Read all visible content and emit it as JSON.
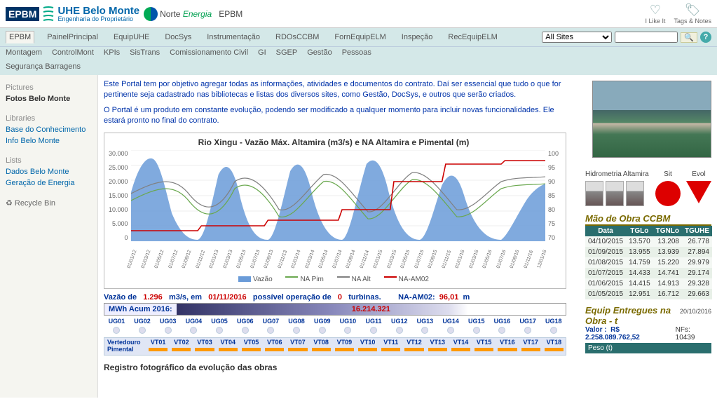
{
  "header": {
    "logo_abbr": "EPBM",
    "logo_line1": "UHE Belo Monte",
    "logo_line2": "Engenharia do Proprietário",
    "norte": "Norte",
    "energia": "Energia",
    "site_title": "EPBM",
    "like_label": "I Like It",
    "tags_label": "Tags & Notes"
  },
  "nav": {
    "row1": [
      "EPBM",
      "PainelPrincipal",
      "EquipUHE",
      "DocSys",
      "Instrumentação",
      "RDOsCCBM",
      "FornEquipELM",
      "Inspeção",
      "RecEquipELM"
    ],
    "row2": [
      "Montagem",
      "ControlMont",
      "KPIs",
      "SisTrans",
      "Comissionamento Civil",
      "GI",
      "SGEP",
      "Gestão",
      "Pessoas"
    ],
    "row3": [
      "Segurança Barragens"
    ],
    "search_site": "All Sites",
    "search_placeholder": ""
  },
  "sidebar": {
    "h1": "Pictures",
    "l1": "Fotos Belo Monte",
    "h2": "Libraries",
    "l2": "Base do Conhecimento",
    "l3": "Info Belo Monte",
    "h3": "Lists",
    "l4": "Dados Belo Monte",
    "l5": "Geração de Energia",
    "recycle": "Recycle Bin"
  },
  "intro": {
    "p1": "Este Portal tem por objetivo agregar todas as informações, atividades e documentos do contrato. Daí ser essencial que tudo o que for pertinente seja cadastrado nas bibliotecas e listas dos diversos sites, como Gestão, DocSys, e outros que serão criados.",
    "p2": "O Portal é um produto em constante evolução, podendo ser modificado a qualquer momento para incluir novas funcionalidades. Ele estará pronto no final do contrato."
  },
  "chart": {
    "title": "Rio Xingu - Vazão Máx. Altamira (m3/s) e NA Altamira e Pimental (m)",
    "y1ticks": [
      "30.000",
      "25.000",
      "20.000",
      "15.000",
      "10.000",
      "5.000",
      "0"
    ],
    "y2ticks": [
      "100",
      "95",
      "90",
      "85",
      "80",
      "75",
      "70"
    ],
    "xticks": [
      "01/01/12",
      "01/03/12",
      "01/05/12",
      "01/07/12",
      "01/09/12",
      "01/11/12",
      "01/01/13",
      "01/03/13",
      "01/05/13",
      "01/07/13",
      "01/09/13",
      "01/11/13",
      "01/01/14",
      "01/03/14",
      "01/05/14",
      "01/07/14",
      "01/09/14",
      "01/11/14",
      "01/01/15",
      "01/03/15",
      "01/05/15",
      "01/07/15",
      "01/09/15",
      "01/11/15",
      "01/01/16",
      "01/03/16",
      "01/05/16",
      "01/07/16",
      "01/09/16",
      "01/11/16",
      "12/01/16"
    ],
    "legend": {
      "vazao": "Vazão",
      "napim": "NA Pim",
      "naalt": "NA Alt",
      "naam02": "NA-AM02"
    },
    "colors": {
      "vazao": "#6a9bd8",
      "napim": "#6aa84f",
      "naalt": "#808080",
      "naam02": "#cc0000",
      "grid": "#dddddd"
    }
  },
  "status": {
    "vazao_lbl": "Vazão de",
    "vazao_val": "1.296",
    "vazao_unit": "m3/s,  em",
    "vazao_date": "01/11/2016",
    "oper_lbl": "possível operação de",
    "oper_val": "0",
    "oper_unit": "turbinas.",
    "naam_lbl": "NA-AM02:",
    "naam_val": "96,01",
    "naam_unit": "m",
    "mwh_lbl": "MWh Acum 2016:",
    "mwh_val": "16.214.321"
  },
  "ug": {
    "labels": [
      "UG01",
      "UG02",
      "UG03",
      "UG04",
      "UG05",
      "UG06",
      "UG07",
      "UG08",
      "UG09",
      "UG10",
      "UG11",
      "UG12",
      "UG13",
      "UG14",
      "UG15",
      "UG16",
      "UG17",
      "UG18"
    ]
  },
  "vt": {
    "side": "Vertedouro Pimental",
    "labels": [
      "VT01",
      "VT02",
      "VT03",
      "VT04",
      "VT05",
      "VT06",
      "VT07",
      "VT08",
      "VT09",
      "VT10",
      "VT11",
      "VT12",
      "VT13",
      "VT14",
      "VT15",
      "VT16",
      "VT17",
      "VT18"
    ]
  },
  "right": {
    "hidro": "Hidrometria Altamira",
    "sit": "Sit",
    "evol": "Evol"
  },
  "ccbm": {
    "title": "Mão de Obra CCBM",
    "cols": [
      "Data",
      "TGLo",
      "TGNLo",
      "TGUHE"
    ],
    "rows": [
      [
        "04/10/2015",
        "13.570",
        "13.208",
        "26.778"
      ],
      [
        "01/09/2015",
        "13.955",
        "13.939",
        "27.894"
      ],
      [
        "01/08/2015",
        "14.759",
        "15.220",
        "29.979"
      ],
      [
        "01/07/2015",
        "14.433",
        "14.741",
        "29.174"
      ],
      [
        "01/06/2015",
        "14.415",
        "14.913",
        "29.328"
      ],
      [
        "01/05/2015",
        "12.951",
        "16.712",
        "29.663"
      ]
    ]
  },
  "equip": {
    "title": "Equip Entregues na Obra - t",
    "date": "20/10/2016",
    "valor_lbl": "Valor :",
    "valor": "R$ 2.258.089.762,52",
    "nfs_lbl": "NFs:",
    "nfs": "10439",
    "peso": "Peso (t)"
  },
  "bottom": "Registro fotográfico da evolução das obras"
}
